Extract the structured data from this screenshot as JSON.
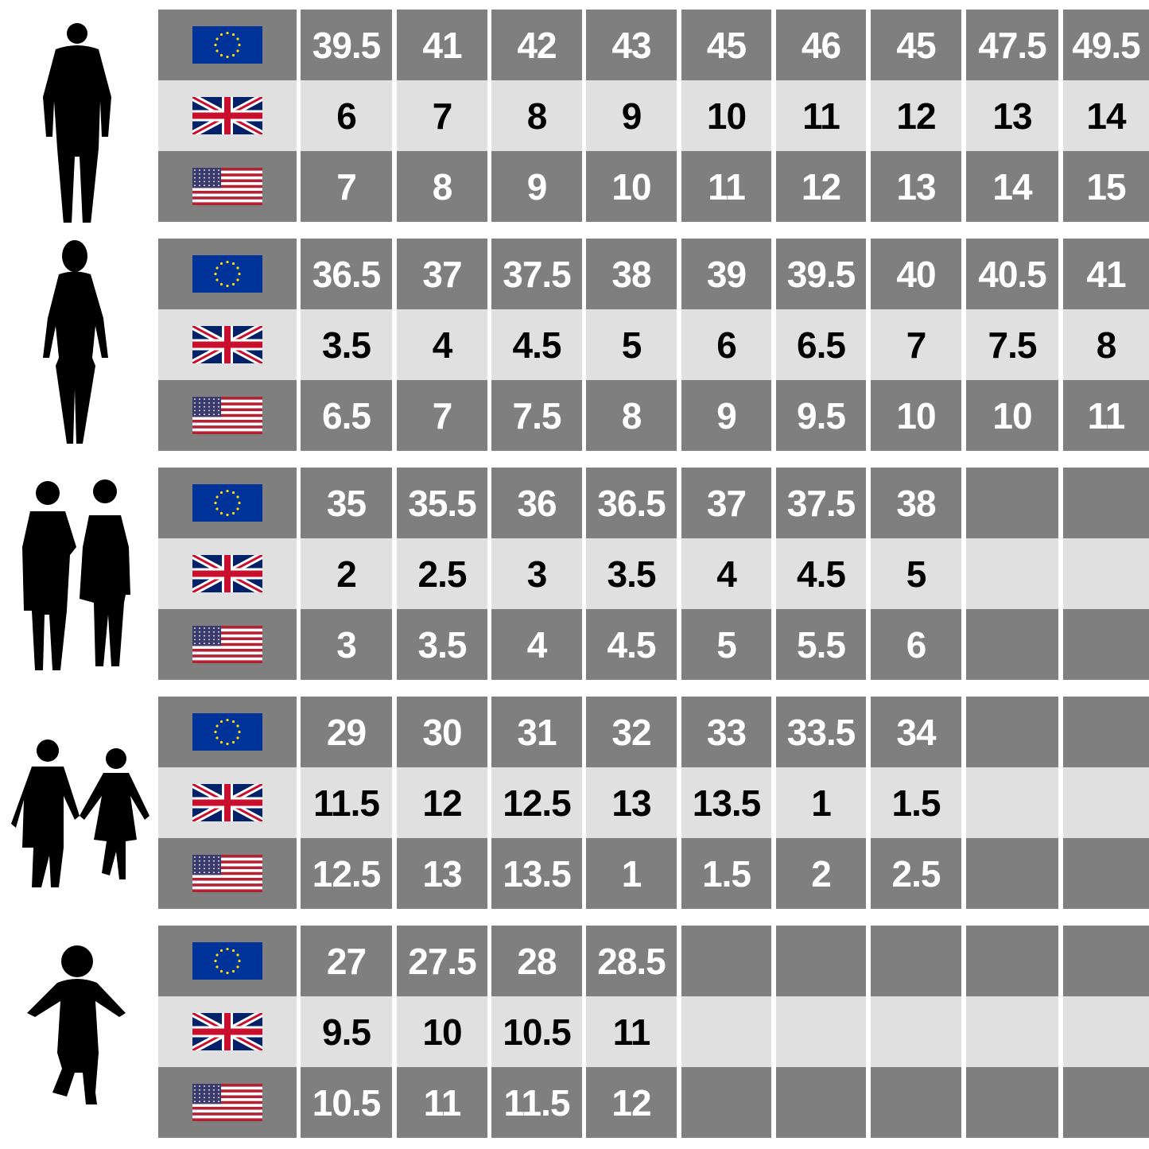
{
  "colors": {
    "dark_row": "#7f7f7f",
    "light_row": "#e0e0e0",
    "dark_text": "#ffffff",
    "light_text": "#000000"
  },
  "row_labels": [
    {
      "icon": "eu-flag-icon",
      "region": "EU"
    },
    {
      "icon": "uk-flag-icon",
      "region": "UK"
    },
    {
      "icon": "us-flag-icon",
      "region": "US"
    }
  ],
  "groups": [
    {
      "icon": "man-silhouette-icon",
      "eu": [
        "39.5",
        "41",
        "42",
        "43",
        "45",
        "46",
        "45",
        "47.5",
        "49.5"
      ],
      "uk": [
        "6",
        "7",
        "8",
        "9",
        "10",
        "11",
        "12",
        "13",
        "14"
      ],
      "us": [
        "7",
        "8",
        "9",
        "10",
        "11",
        "12",
        "13",
        "14",
        "15"
      ]
    },
    {
      "icon": "woman-silhouette-icon",
      "eu": [
        "36.5",
        "37",
        "37.5",
        "38",
        "39",
        "39.5",
        "40",
        "40.5",
        "41"
      ],
      "uk": [
        "3.5",
        "4",
        "4.5",
        "5",
        "6",
        "6.5",
        "7",
        "7.5",
        "8"
      ],
      "us": [
        "6.5",
        "7",
        "7.5",
        "8",
        "9",
        "9.5",
        "10",
        "10",
        "11"
      ]
    },
    {
      "icon": "older-children-silhouette-icon",
      "eu": [
        "35",
        "35.5",
        "36",
        "36.5",
        "37",
        "37.5",
        "38",
        "",
        ""
      ],
      "uk": [
        "2",
        "2.5",
        "3",
        "3.5",
        "4",
        "4.5",
        "5",
        "",
        ""
      ],
      "us": [
        "3",
        "3.5",
        "4",
        "4.5",
        "5",
        "5.5",
        "6",
        "",
        ""
      ]
    },
    {
      "icon": "young-children-silhouette-icon",
      "eu": [
        "29",
        "30",
        "31",
        "32",
        "33",
        "33.5",
        "34",
        "",
        ""
      ],
      "uk": [
        "11.5",
        "12",
        "12.5",
        "13",
        "13.5",
        "1",
        "1.5",
        "",
        ""
      ],
      "us": [
        "12.5",
        "13",
        "13.5",
        "1",
        "1.5",
        "2",
        "2.5",
        "",
        ""
      ]
    },
    {
      "icon": "toddler-silhouette-icon",
      "eu": [
        "27",
        "27.5",
        "28",
        "28.5",
        "",
        "",
        "",
        "",
        ""
      ],
      "uk": [
        "9.5",
        "10",
        "10.5",
        "11",
        "",
        "",
        "",
        "",
        ""
      ],
      "us": [
        "10.5",
        "11",
        "11.5",
        "12",
        "",
        "",
        "",
        "",
        ""
      ]
    }
  ]
}
